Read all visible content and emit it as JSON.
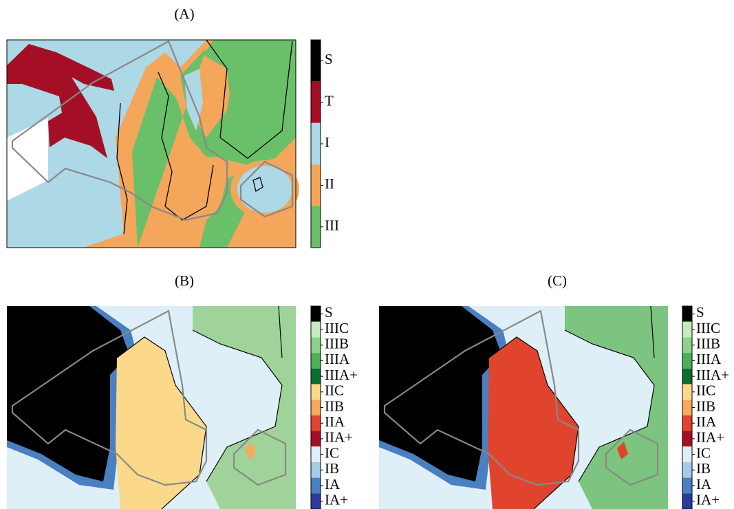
{
  "panels": [
    {
      "title": "(A)",
      "colorbar": {
        "labels": [
          "S",
          "T",
          "I",
          "II",
          "III"
        ],
        "colors": [
          "#000000",
          "#a50f25",
          "#add8e6",
          "#f4a65b",
          "#6abf69"
        ]
      }
    },
    {
      "title": "(B)",
      "colorbar": {
        "labels": [
          "S",
          "IIIC",
          "IIIB",
          "IIIA",
          "IIIA+",
          "IIC",
          "IIB",
          "IIA",
          "IIA+",
          "IC",
          "IB",
          "IA",
          "IA+"
        ],
        "colors": [
          "#000000",
          "#c7e9c0",
          "#8fd08a",
          "#4caf5a",
          "#0b6e2e",
          "#fcd98a",
          "#f7a95c",
          "#e0442c",
          "#a50f25",
          "#deeff8",
          "#a6cbe6",
          "#4a7fc0",
          "#2c3a9a"
        ]
      }
    },
    {
      "title": "(C)",
      "colorbar": {
        "labels": [
          "S",
          "IIIC",
          "IIIB",
          "IIIA",
          "IIIA+",
          "IIC",
          "IIB",
          "IIA",
          "IIA+",
          "IC",
          "IB",
          "IA",
          "IA+"
        ],
        "colors": [
          "#000000",
          "#c7e9c0",
          "#8fd08a",
          "#4caf5a",
          "#0b6e2e",
          "#fcd98a",
          "#f7a95c",
          "#e0442c",
          "#a50f25",
          "#deeff8",
          "#a6cbe6",
          "#4a7fc0",
          "#2c3a9a"
        ]
      }
    }
  ]
}
